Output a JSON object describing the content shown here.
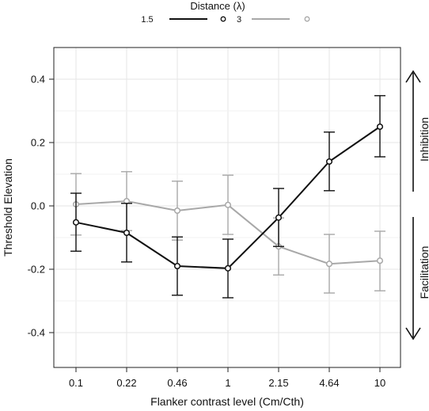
{
  "chart_data": {
    "type": "line",
    "xlabel": "Flanker contrast level (Cm/Cth)",
    "ylabel": "Threshold Elevation",
    "categories": [
      "0.1",
      "0.22",
      "0.46",
      "1",
      "2.15",
      "4.64",
      "10"
    ],
    "ylim": [
      -0.5,
      0.5
    ],
    "yticks": [
      "0.4",
      "0.2",
      "0.0",
      "-0.2",
      "-0.4"
    ],
    "ytick_values": [
      0.4,
      0.2,
      0.0,
      -0.2,
      -0.4
    ],
    "grid": true,
    "legend": {
      "title": "Distance (λ)",
      "placement": "top"
    },
    "series": [
      {
        "name": "1.5",
        "color": "#111111",
        "values": [
          -0.052,
          -0.085,
          -0.19,
          -0.197,
          -0.037,
          0.14,
          0.25
        ],
        "err_low": [
          -0.143,
          -0.177,
          -0.282,
          -0.29,
          -0.128,
          0.048,
          0.155
        ],
        "err_high": [
          0.04,
          0.008,
          -0.098,
          -0.105,
          0.055,
          0.233,
          0.348
        ]
      },
      {
        "name": "3",
        "color": "#a8a8a8",
        "values": [
          0.005,
          0.015,
          -0.015,
          0.003,
          -0.128,
          -0.183,
          -0.173
        ],
        "err_low": [
          -0.092,
          -0.078,
          -0.108,
          -0.09,
          -0.218,
          -0.275,
          -0.268
        ],
        "err_high": [
          0.102,
          0.108,
          0.078,
          0.097,
          -0.038,
          -0.09,
          -0.08
        ]
      }
    ],
    "annotations": {
      "upper": "Inhibition",
      "lower": "Facilitation"
    }
  }
}
